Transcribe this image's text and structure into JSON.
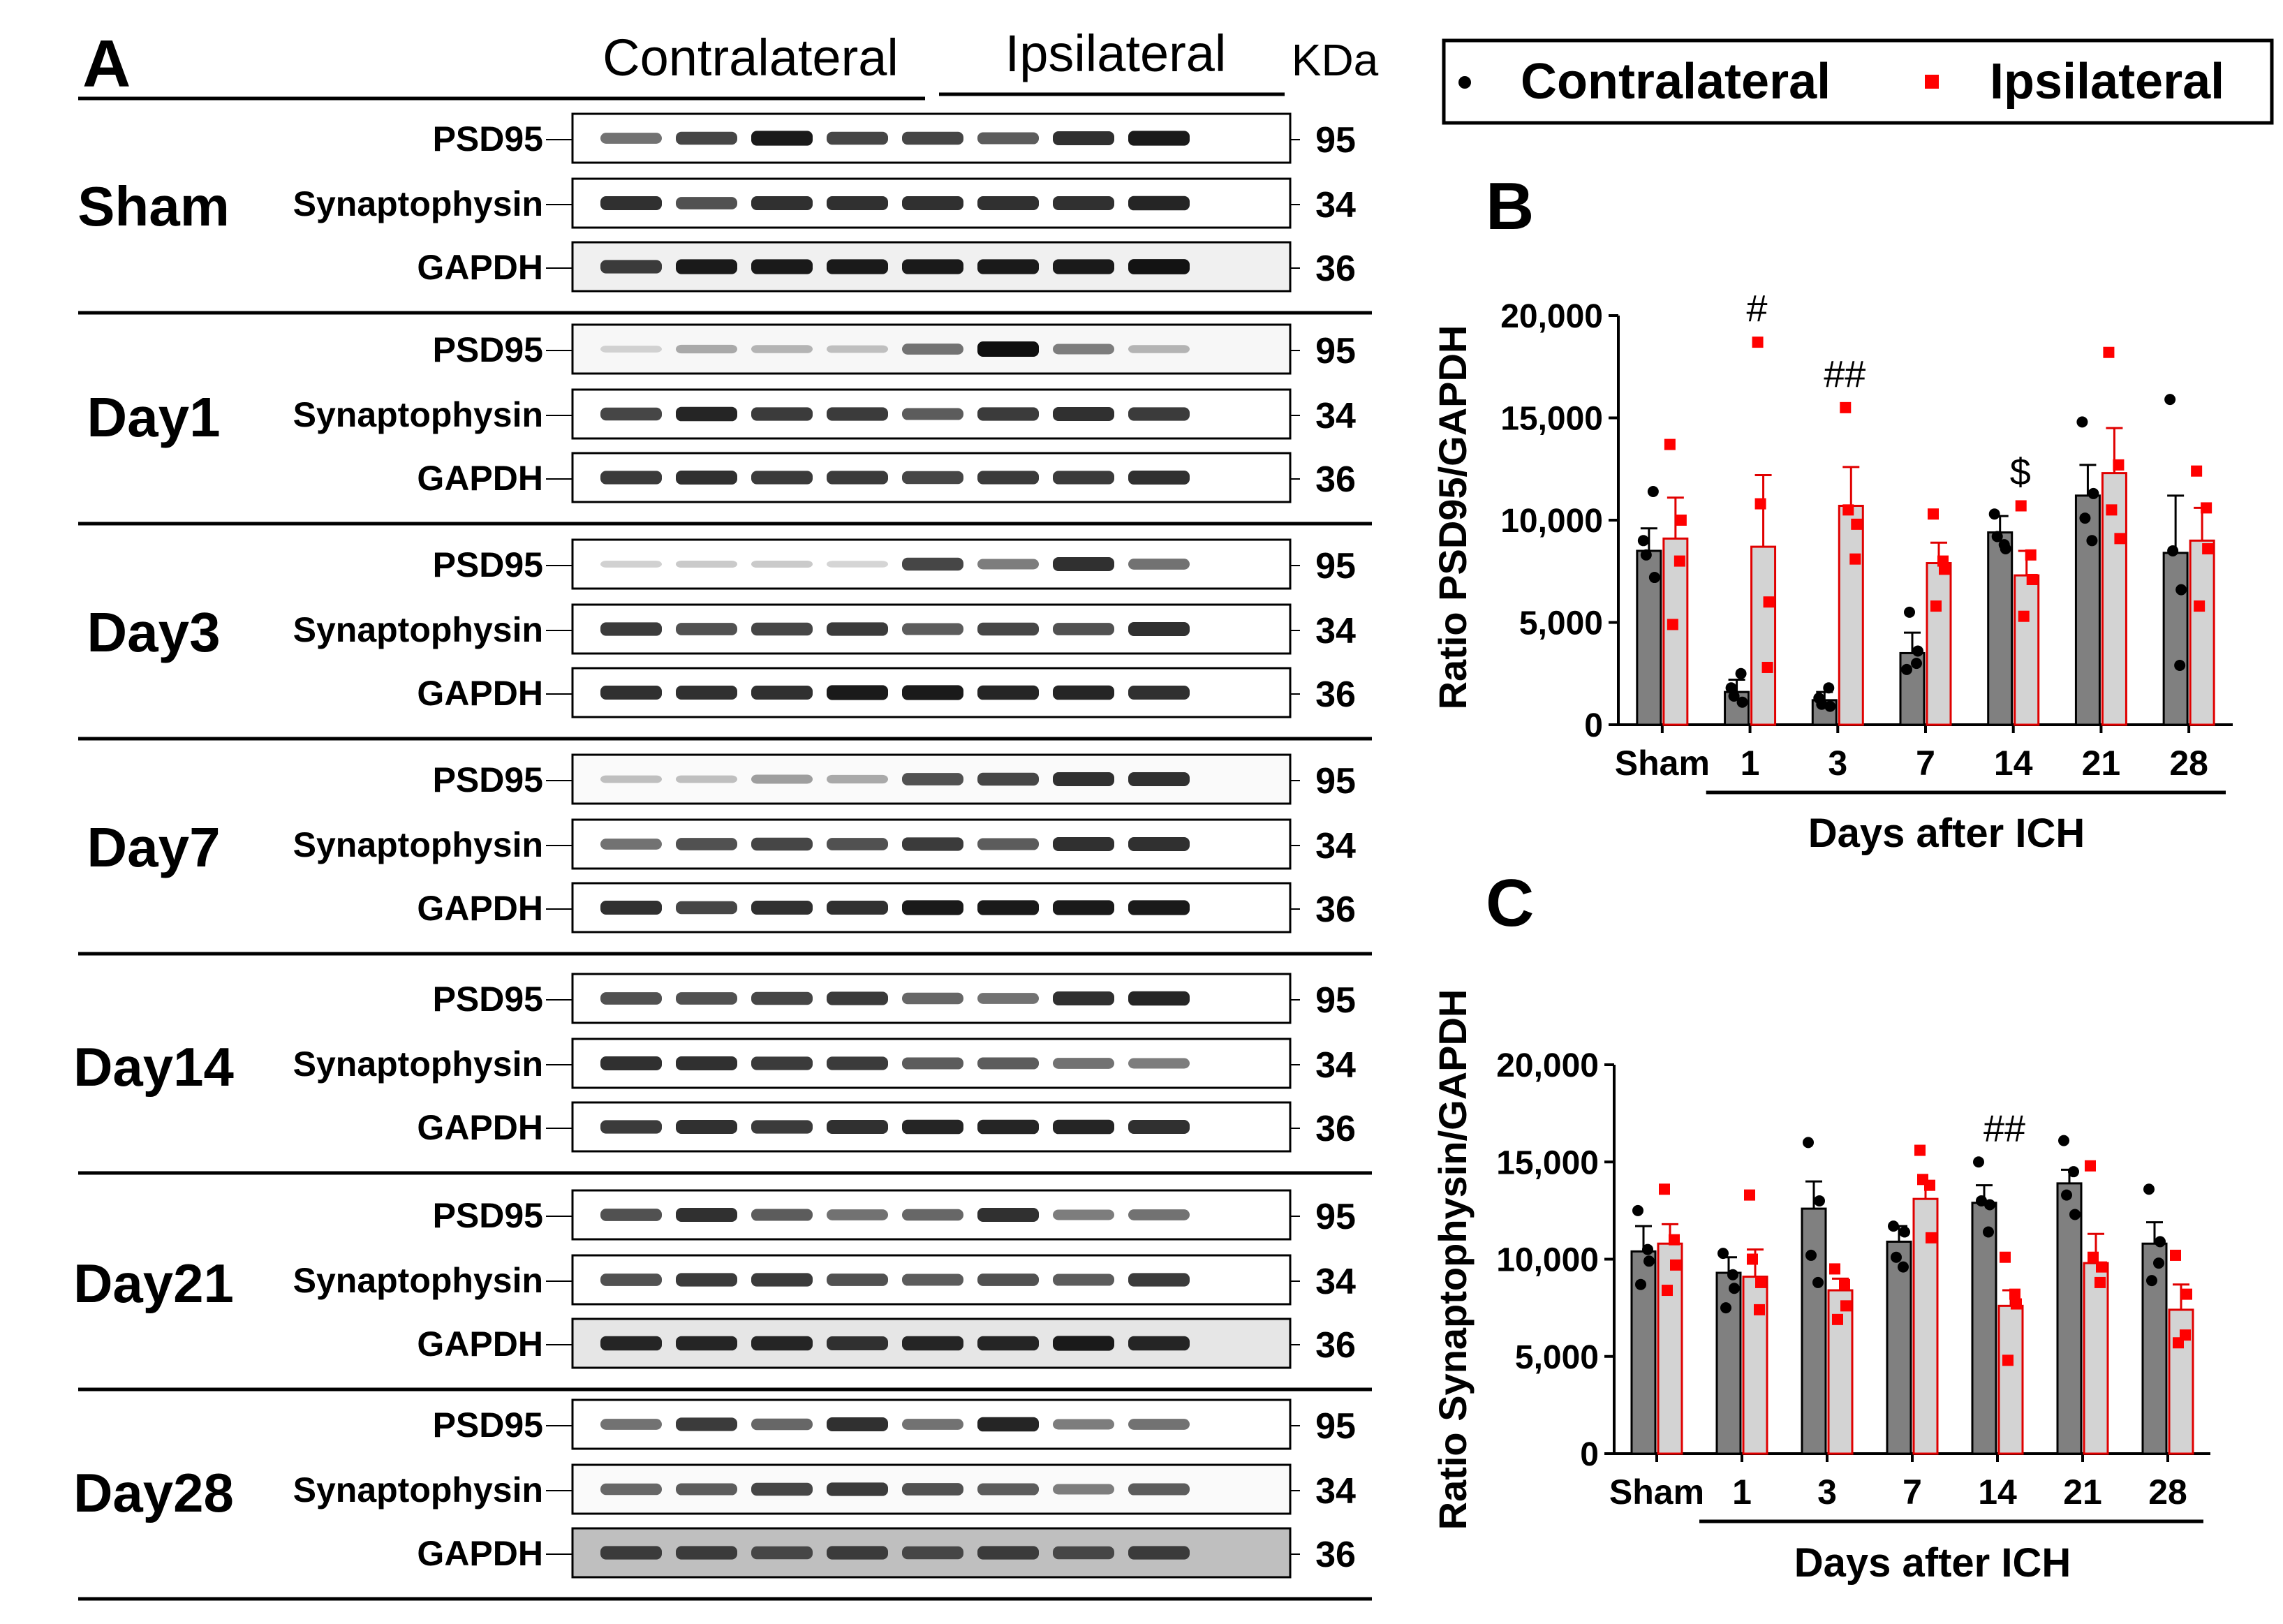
{
  "panel_a": {
    "letter": "A",
    "group_left": "Contralateral",
    "group_right": "Ipsilateral",
    "unit": "KDa",
    "sections": [
      {
        "label": "Sham",
        "rows": [
          {
            "name": "PSD95",
            "kda": "95",
            "tint": 0.0,
            "lanes": [
              0.55,
              0.75,
              0.95,
              0.75,
              0.75,
              0.65,
              0.85,
              0.95
            ]
          },
          {
            "name": "Synaptophysin",
            "kda": "34",
            "tint": 0.0,
            "lanes": [
              0.85,
              0.7,
              0.85,
              0.85,
              0.85,
              0.85,
              0.85,
              0.9
            ]
          },
          {
            "name": "GAPDH",
            "kda": "36",
            "tint": 0.06,
            "lanes": [
              0.8,
              0.95,
              0.95,
              0.95,
              0.95,
              0.95,
              0.95,
              0.98
            ]
          }
        ]
      },
      {
        "label": "Day1",
        "rows": [
          {
            "name": "PSD95",
            "kda": "95",
            "tint": 0.03,
            "lanes": [
              0.12,
              0.3,
              0.25,
              0.2,
              0.55,
              1.0,
              0.5,
              0.25
            ]
          },
          {
            "name": "Synaptophysin",
            "kda": "34",
            "tint": 0.0,
            "lanes": [
              0.75,
              0.9,
              0.8,
              0.8,
              0.65,
              0.8,
              0.85,
              0.8
            ]
          },
          {
            "name": "GAPDH",
            "kda": "36",
            "tint": 0.0,
            "lanes": [
              0.8,
              0.85,
              0.8,
              0.8,
              0.75,
              0.8,
              0.8,
              0.85
            ]
          }
        ]
      },
      {
        "label": "Day3",
        "rows": [
          {
            "name": "PSD95",
            "kda": "95",
            "tint": 0.0,
            "lanes": [
              0.12,
              0.15,
              0.15,
              0.1,
              0.75,
              0.5,
              0.85,
              0.55
            ]
          },
          {
            "name": "Synaptophysin",
            "kda": "34",
            "tint": 0.0,
            "lanes": [
              0.8,
              0.7,
              0.75,
              0.8,
              0.65,
              0.75,
              0.7,
              0.85
            ]
          },
          {
            "name": "GAPDH",
            "kda": "36",
            "tint": 0.0,
            "lanes": [
              0.85,
              0.85,
              0.85,
              0.95,
              0.95,
              0.9,
              0.9,
              0.85
            ]
          }
        ]
      },
      {
        "label": "Day7",
        "rows": [
          {
            "name": "PSD95",
            "kda": "95",
            "tint": 0.02,
            "lanes": [
              0.2,
              0.2,
              0.35,
              0.3,
              0.7,
              0.75,
              0.85,
              0.85
            ]
          },
          {
            "name": "Synaptophysin",
            "kda": "34",
            "tint": 0.0,
            "lanes": [
              0.55,
              0.7,
              0.75,
              0.7,
              0.8,
              0.65,
              0.85,
              0.85
            ]
          },
          {
            "name": "GAPDH",
            "kda": "36",
            "tint": 0.0,
            "lanes": [
              0.85,
              0.75,
              0.85,
              0.85,
              0.95,
              0.95,
              0.95,
              0.95
            ]
          }
        ]
      },
      {
        "label": "Day14",
        "rows": [
          {
            "name": "PSD95",
            "kda": "95",
            "tint": 0.0,
            "lanes": [
              0.7,
              0.7,
              0.75,
              0.8,
              0.6,
              0.55,
              0.85,
              0.9
            ]
          },
          {
            "name": "Synaptophysin",
            "kda": "34",
            "tint": 0.0,
            "lanes": [
              0.85,
              0.85,
              0.8,
              0.8,
              0.65,
              0.65,
              0.55,
              0.5
            ]
          },
          {
            "name": "GAPDH",
            "kda": "36",
            "tint": 0.0,
            "lanes": [
              0.8,
              0.85,
              0.8,
              0.85,
              0.9,
              0.9,
              0.9,
              0.85
            ]
          }
        ]
      },
      {
        "label": "Day21",
        "rows": [
          {
            "name": "PSD95",
            "kda": "95",
            "tint": 0.0,
            "lanes": [
              0.7,
              0.85,
              0.65,
              0.55,
              0.6,
              0.85,
              0.5,
              0.55
            ]
          },
          {
            "name": "Synaptophysin",
            "kda": "34",
            "tint": 0.0,
            "lanes": [
              0.7,
              0.8,
              0.8,
              0.7,
              0.65,
              0.7,
              0.65,
              0.8
            ]
          },
          {
            "name": "GAPDH",
            "kda": "36",
            "tint": 0.1,
            "lanes": [
              0.9,
              0.9,
              0.9,
              0.85,
              0.9,
              0.9,
              0.95,
              0.9
            ]
          }
        ]
      },
      {
        "label": "Day28",
        "rows": [
          {
            "name": "PSD95",
            "kda": "95",
            "tint": 0.0,
            "lanes": [
              0.55,
              0.8,
              0.6,
              0.85,
              0.55,
              0.9,
              0.5,
              0.55
            ]
          },
          {
            "name": "Synaptophysin",
            "kda": "34",
            "tint": 0.02,
            "lanes": [
              0.6,
              0.65,
              0.75,
              0.8,
              0.7,
              0.65,
              0.5,
              0.65
            ]
          },
          {
            "name": "GAPDH",
            "kda": "36",
            "tint": 0.25,
            "lanes": [
              0.8,
              0.8,
              0.75,
              0.8,
              0.75,
              0.8,
              0.75,
              0.8
            ]
          }
        ]
      }
    ]
  },
  "legend": {
    "items": [
      {
        "label": "Contralateral",
        "marker": "circle",
        "color": "#000000"
      },
      {
        "label": "Ipsilateral",
        "marker": "square",
        "color": "#ff0000"
      }
    ]
  },
  "colors": {
    "contra_bar": "#808080",
    "ipsi_bar": "#d3d3d3",
    "contra_point": "#000000",
    "ipsi_point": "#ff0000"
  },
  "chart_data": [
    {
      "panel": "B",
      "type": "bar",
      "ylabel": "Ratio PSD95/GAPDH",
      "xlabel": "Days after ICH",
      "categories": [
        "Sham",
        "1",
        "3",
        "7",
        "14",
        "21",
        "28"
      ],
      "ylim": [
        0,
        20000
      ],
      "yticks": [
        "0",
        "5,000",
        "10,000",
        "15,000",
        "20,000"
      ],
      "series": [
        {
          "name": "Contralateral",
          "values": [
            8500,
            1600,
            1200,
            3500,
            9400,
            11200,
            8400
          ],
          "errors": [
            1100,
            600,
            400,
            1000,
            800,
            1500,
            2800
          ],
          "points": [
            [
              9000,
              7200,
              8300,
              11400
            ],
            [
              1800,
              1100,
              1400,
              2500
            ],
            [
              1300,
              900,
              1000,
              1800
            ],
            [
              2700,
              3600,
              5500,
              3000
            ],
            [
              10300,
              8600,
              9200,
              8800
            ],
            [
              14800,
              11300,
              10100,
              9000
            ],
            [
              15900,
              6600,
              8500,
              2900
            ]
          ]
        },
        {
          "name": "Ipsilateral",
          "values": [
            9100,
            8700,
            10700,
            7900,
            7300,
            12300,
            9000
          ],
          "errors": [
            2000,
            3500,
            1900,
            1000,
            1200,
            2200,
            1600
          ],
          "points": [
            [
              13700,
              10000,
              4900,
              8000
            ],
            [
              18700,
              6000,
              10800,
              2800
            ],
            [
              15500,
              9800,
              10500,
              8100
            ],
            [
              10300,
              7600,
              5800,
              8000
            ],
            [
              10700,
              7100,
              5300,
              8300
            ],
            [
              18200,
              9100,
              10500,
              12700
            ],
            [
              12400,
              8600,
              5800,
              10600
            ]
          ]
        }
      ],
      "annotations": [
        {
          "category": "1",
          "text": "#"
        },
        {
          "category": "3",
          "text": "##"
        },
        {
          "category": "14",
          "text": "$"
        }
      ]
    },
    {
      "panel": "C",
      "type": "bar",
      "ylabel": "Ratio Synaptophysin/GAPDH",
      "xlabel": "Days after ICH",
      "categories": [
        "Sham",
        "1",
        "3",
        "7",
        "14",
        "21",
        "28"
      ],
      "ylim": [
        0,
        20000
      ],
      "yticks": [
        "0",
        "5,000",
        "10,000",
        "15,000",
        "20,000"
      ],
      "series": [
        {
          "name": "Contralateral",
          "values": [
            10400,
            9300,
            12600,
            10900,
            12900,
            13900,
            10800
          ],
          "errors": [
            1300,
            800,
            1400,
            800,
            900,
            700,
            1100
          ],
          "points": [
            [
              12500,
              9900,
              8700,
              10500
            ],
            [
              10300,
              8500,
              7500,
              9200
            ],
            [
              16000,
              13000,
              10200,
              8800
            ],
            [
              11700,
              11400,
              10100,
              9600
            ],
            [
              15000,
              12800,
              13000,
              11400
            ],
            [
              16100,
              12300,
              13300,
              14500
            ],
            [
              13600,
              10900,
              8900,
              9800
            ]
          ]
        },
        {
          "name": "Ipsilateral",
          "values": [
            10800,
            9100,
            8400,
            13100,
            7600,
            9800,
            7400
          ],
          "errors": [
            1000,
            1400,
            600,
            900,
            800,
            1500,
            1300
          ],
          "points": [
            [
              13600,
              9700,
              8400,
              11000
            ],
            [
              13300,
              8800,
              10000,
              7400
            ],
            [
              9500,
              7600,
              6900,
              8700
            ],
            [
              15600,
              11100,
              14100,
              13800
            ],
            [
              10100,
              7700,
              4800,
              8200
            ],
            [
              14800,
              9600,
              10100,
              8800
            ],
            [
              10200,
              8200,
              5700,
              6100
            ]
          ]
        }
      ],
      "annotations": [
        {
          "category": "14",
          "text": "##"
        }
      ]
    }
  ]
}
